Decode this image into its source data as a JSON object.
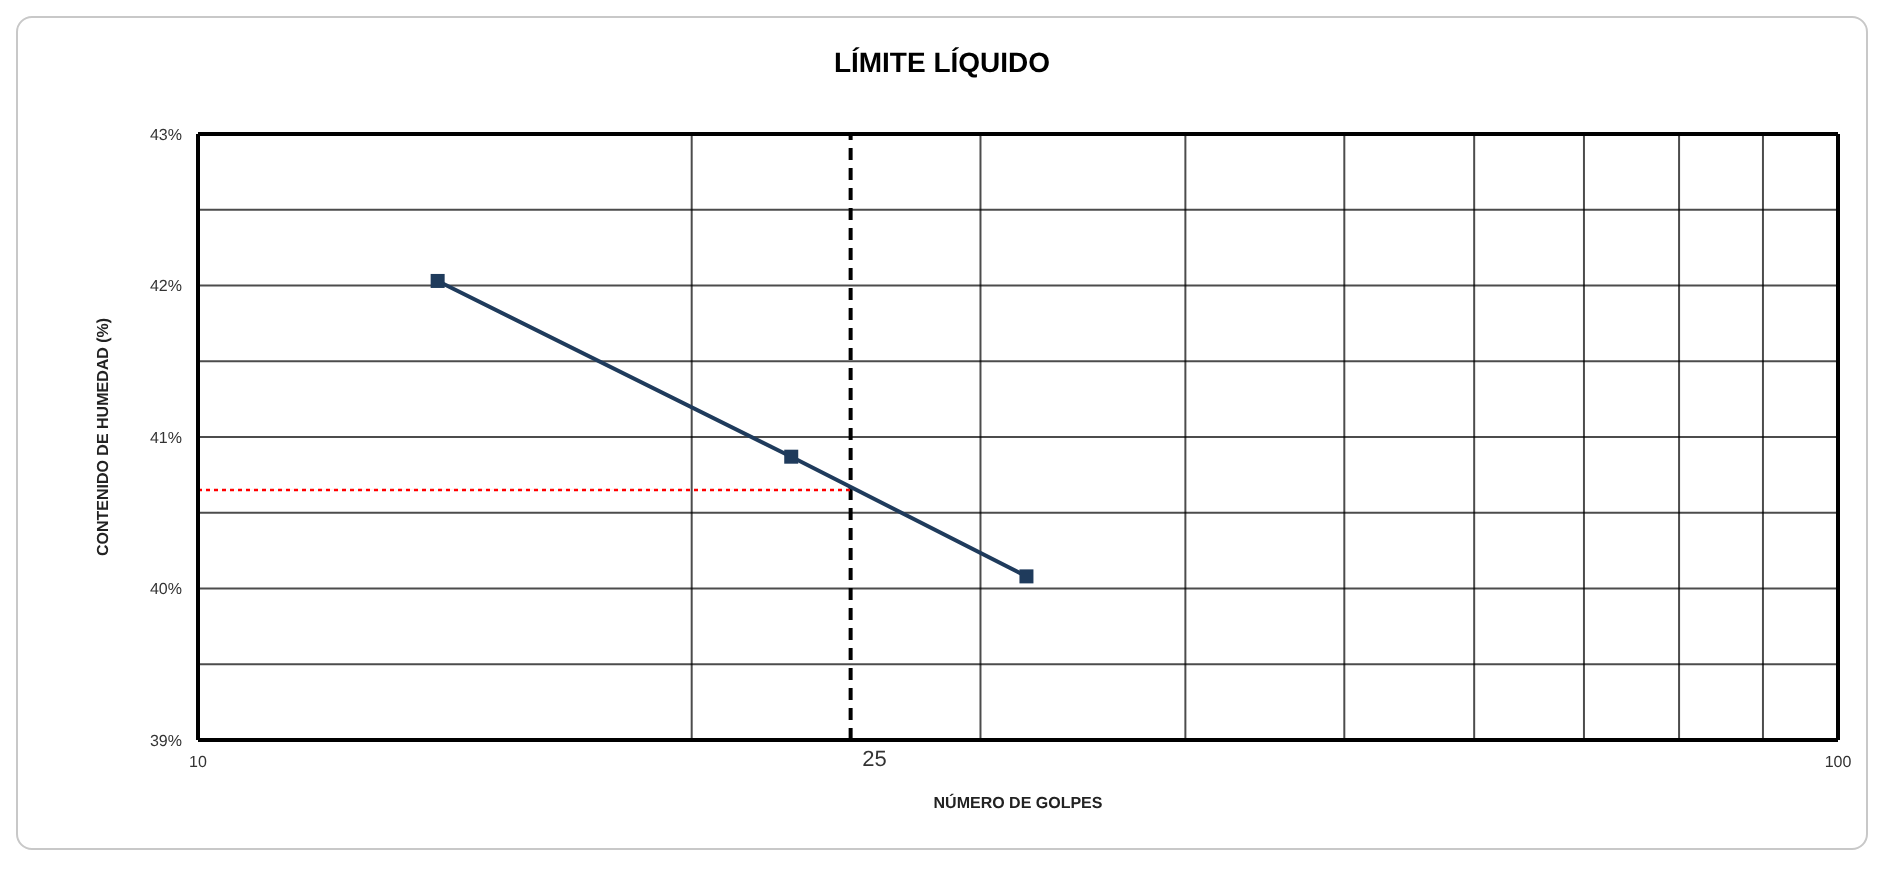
{
  "chart_data": {
    "type": "line",
    "title": "LÍMITE LÍQUIDO",
    "xlabel": "NÚMERO DE GOLPES",
    "ylabel": "CONTENIDO DE HUMEDAD (%)",
    "x": [
      14,
      23,
      32
    ],
    "series": [
      {
        "color": "#1f3b5c",
        "values": [
          42.03,
          40.87,
          40.08
        ]
      }
    ],
    "log": "x",
    "marker": "square",
    "line_style": "solid",
    "grid": true,
    "legend": false,
    "xlim": [
      10,
      100
    ],
    "xticks": [
      10,
      {
        "value": 20,
        "label": null
      },
      {
        "value": 30,
        "label": null
      },
      {
        "value": 40,
        "label": null
      },
      {
        "value": 50,
        "label": null
      },
      {
        "value": 60,
        "label": null
      },
      {
        "value": 70,
        "label": null
      },
      {
        "value": 80,
        "label": null
      },
      {
        "value": 90,
        "label": null
      },
      100
    ],
    "ylim": [
      39,
      43
    ],
    "yticks": [
      {
        "value": 39,
        "label": "39%"
      },
      {
        "value": 39.5,
        "label": null
      },
      {
        "value": 40,
        "label": "40%"
      },
      {
        "value": 40.5,
        "label": null
      },
      {
        "value": 41,
        "label": "41%"
      },
      {
        "value": 41.5,
        "label": null
      },
      {
        "value": 42,
        "label": "42%"
      },
      {
        "value": 42.5,
        "label": null
      },
      {
        "value": 43,
        "label": "43%"
      }
    ],
    "ref_lines": [
      {
        "axis": "x",
        "value": 25,
        "label": "25",
        "color": "#000000",
        "line_style": "dashed"
      },
      {
        "axis": "y",
        "value": 40.65,
        "color": "#ff0000",
        "line_style": "dotted"
      }
    ]
  }
}
